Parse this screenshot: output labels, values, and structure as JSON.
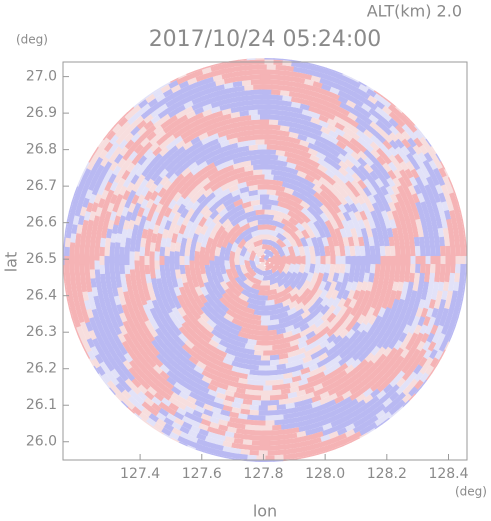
{
  "chart_data": {
    "type": "radar-ppi",
    "title": "2017/10/24 05:24:00",
    "subtitle": "ALT(km) 2.0",
    "x_label": "lon",
    "y_label": "lat",
    "x_unit": "(deg)",
    "y_unit": "(deg)",
    "xlim": [
      127.15,
      128.46
    ],
    "ylim": [
      25.95,
      27.04
    ],
    "xticks": [
      {
        "value": 127.4,
        "label": "127.4"
      },
      {
        "value": 127.6,
        "label": "127.6"
      },
      {
        "value": 127.8,
        "label": "127.8"
      },
      {
        "value": 128.0,
        "label": "128.0"
      },
      {
        "value": 128.2,
        "label": "128.2"
      },
      {
        "value": 128.4,
        "label": "128.4"
      }
    ],
    "yticks": [
      {
        "value": 26.0,
        "label": "26.0"
      },
      26.1,
      26.2,
      26.3,
      26.4,
      26.5,
      26.6,
      26.7,
      26.8,
      26.9,
      {
        "value": 27.0,
        "label": "27.0"
      }
    ],
    "grid": false
  }
}
